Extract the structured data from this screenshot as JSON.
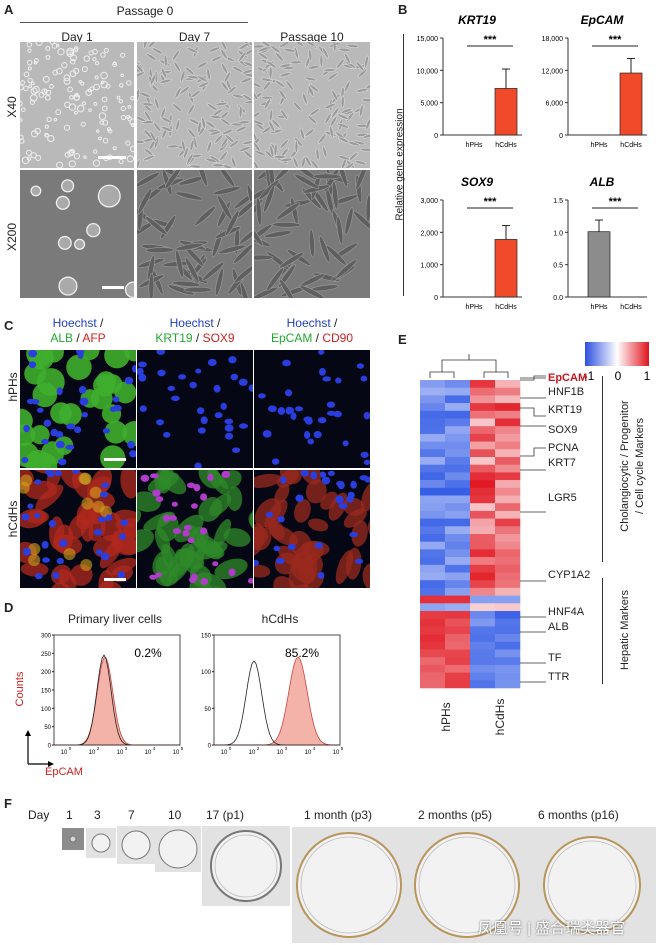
{
  "panels": {
    "A": "A",
    "B": "B",
    "C": "C",
    "D": "D",
    "E": "E",
    "F": "F"
  },
  "panelA": {
    "passage0": "Passage 0",
    "columns": [
      "Day 1",
      "Day 7",
      "Passage 10"
    ],
    "rows": [
      "X40",
      "X200"
    ]
  },
  "panelB": {
    "ylabel": "Relative gene expression",
    "charts": [
      {
        "title": "KRT19",
        "yticks": [
          "15,000",
          "10,000",
          "5,000",
          "0"
        ],
        "ymax": 15000,
        "tickvals": [
          15000,
          10000,
          5000,
          0
        ],
        "values": [
          0,
          7200
        ],
        "errors": [
          0,
          3000
        ],
        "sig": "***",
        "categories": [
          "hPHs",
          "hCdHs"
        ]
      },
      {
        "title": "EpCAM",
        "yticks": [
          "18,000",
          "12,000",
          "6,000",
          "0"
        ],
        "ymax": 18000,
        "tickvals": [
          18000,
          12000,
          6000,
          0
        ],
        "values": [
          0,
          11500
        ],
        "errors": [
          0,
          2700
        ],
        "sig": "***",
        "categories": [
          "hPHs",
          "hCdHs"
        ]
      },
      {
        "title": "SOX9",
        "yticks": [
          "3,000",
          "2,000",
          "1,000",
          "0"
        ],
        "ymax": 3000,
        "tickvals": [
          3000,
          2000,
          1000,
          0
        ],
        "values": [
          0,
          1780
        ],
        "errors": [
          0,
          430
        ],
        "sig": "***",
        "categories": [
          "hPHs",
          "hCdHs"
        ]
      },
      {
        "title": "ALB",
        "yticks": [
          "1.5",
          "1.0",
          "0.5",
          "0.0"
        ],
        "ymax": 1.5,
        "tickvals": [
          1.5,
          1.0,
          0.5,
          0
        ],
        "values": [
          1.01,
          0.0
        ],
        "errors": [
          0.18,
          0
        ],
        "sig": "***",
        "categories": [
          "hPHs",
          "hCdHs"
        ]
      }
    ]
  },
  "panelC": {
    "headers": [
      {
        "a": "Hoechst",
        "sep1": " /",
        "b": "ALB",
        "sep2": " / ",
        "c": "AFP"
      },
      {
        "a": "Hoechst",
        "sep1": " /",
        "b": "KRT19",
        "sep2": " / ",
        "c": "SOX9"
      },
      {
        "a": "Hoechst",
        "sep1": " /",
        "b": "EpCAM",
        "sep2": " / ",
        "c": "CD90"
      }
    ],
    "rows": [
      "hPHs",
      "hCdHs"
    ]
  },
  "panelD": {
    "titles": [
      "Primary liver cells",
      "hCdHs"
    ],
    "percents": [
      "0.2%",
      "85.2%"
    ],
    "ylabel": "Counts",
    "xlabel": "EpCAM",
    "yticks": [
      [
        "300",
        "250",
        "200",
        "150",
        "100",
        "50",
        "0"
      ],
      [
        "150",
        "100",
        "50",
        "0"
      ]
    ],
    "xticks": [
      "10",
      "0",
      "10",
      "2",
      "10",
      "3",
      "10",
      "4",
      "10",
      "5"
    ]
  },
  "panelE": {
    "legend": [
      "-1",
      "0",
      "1"
    ],
    "genes": [
      "EpCAM",
      "HNF1B",
      "KRT19",
      "SOX9",
      "PCNA",
      "KRT7",
      "LGR5",
      "CYP1A2",
      "HNF4A",
      "ALB",
      "TF",
      "TTR"
    ],
    "group1": "Cholangiocytic / Progenitor",
    "group1b": "/ Cell cycle Markers",
    "group2": "Hepatic Markers",
    "columns": [
      "hPHs",
      "hCdHs"
    ]
  },
  "panelF": {
    "day_label": "Day",
    "timepoints": [
      "1",
      "3",
      "7",
      "10",
      "17 (p1)",
      "1 month (p3)",
      "2 months (p5)",
      "6 months (p16)"
    ],
    "watermark": "凤凰号 | 盛合瑞类器官"
  },
  "colors": {
    "bar_red": "#f04a2a",
    "bar_gray": "#8c8c8c",
    "heat_blue": "#3b5fe0",
    "heat_red": "#e0202a",
    "hist_fill": "#f3b3a8"
  }
}
